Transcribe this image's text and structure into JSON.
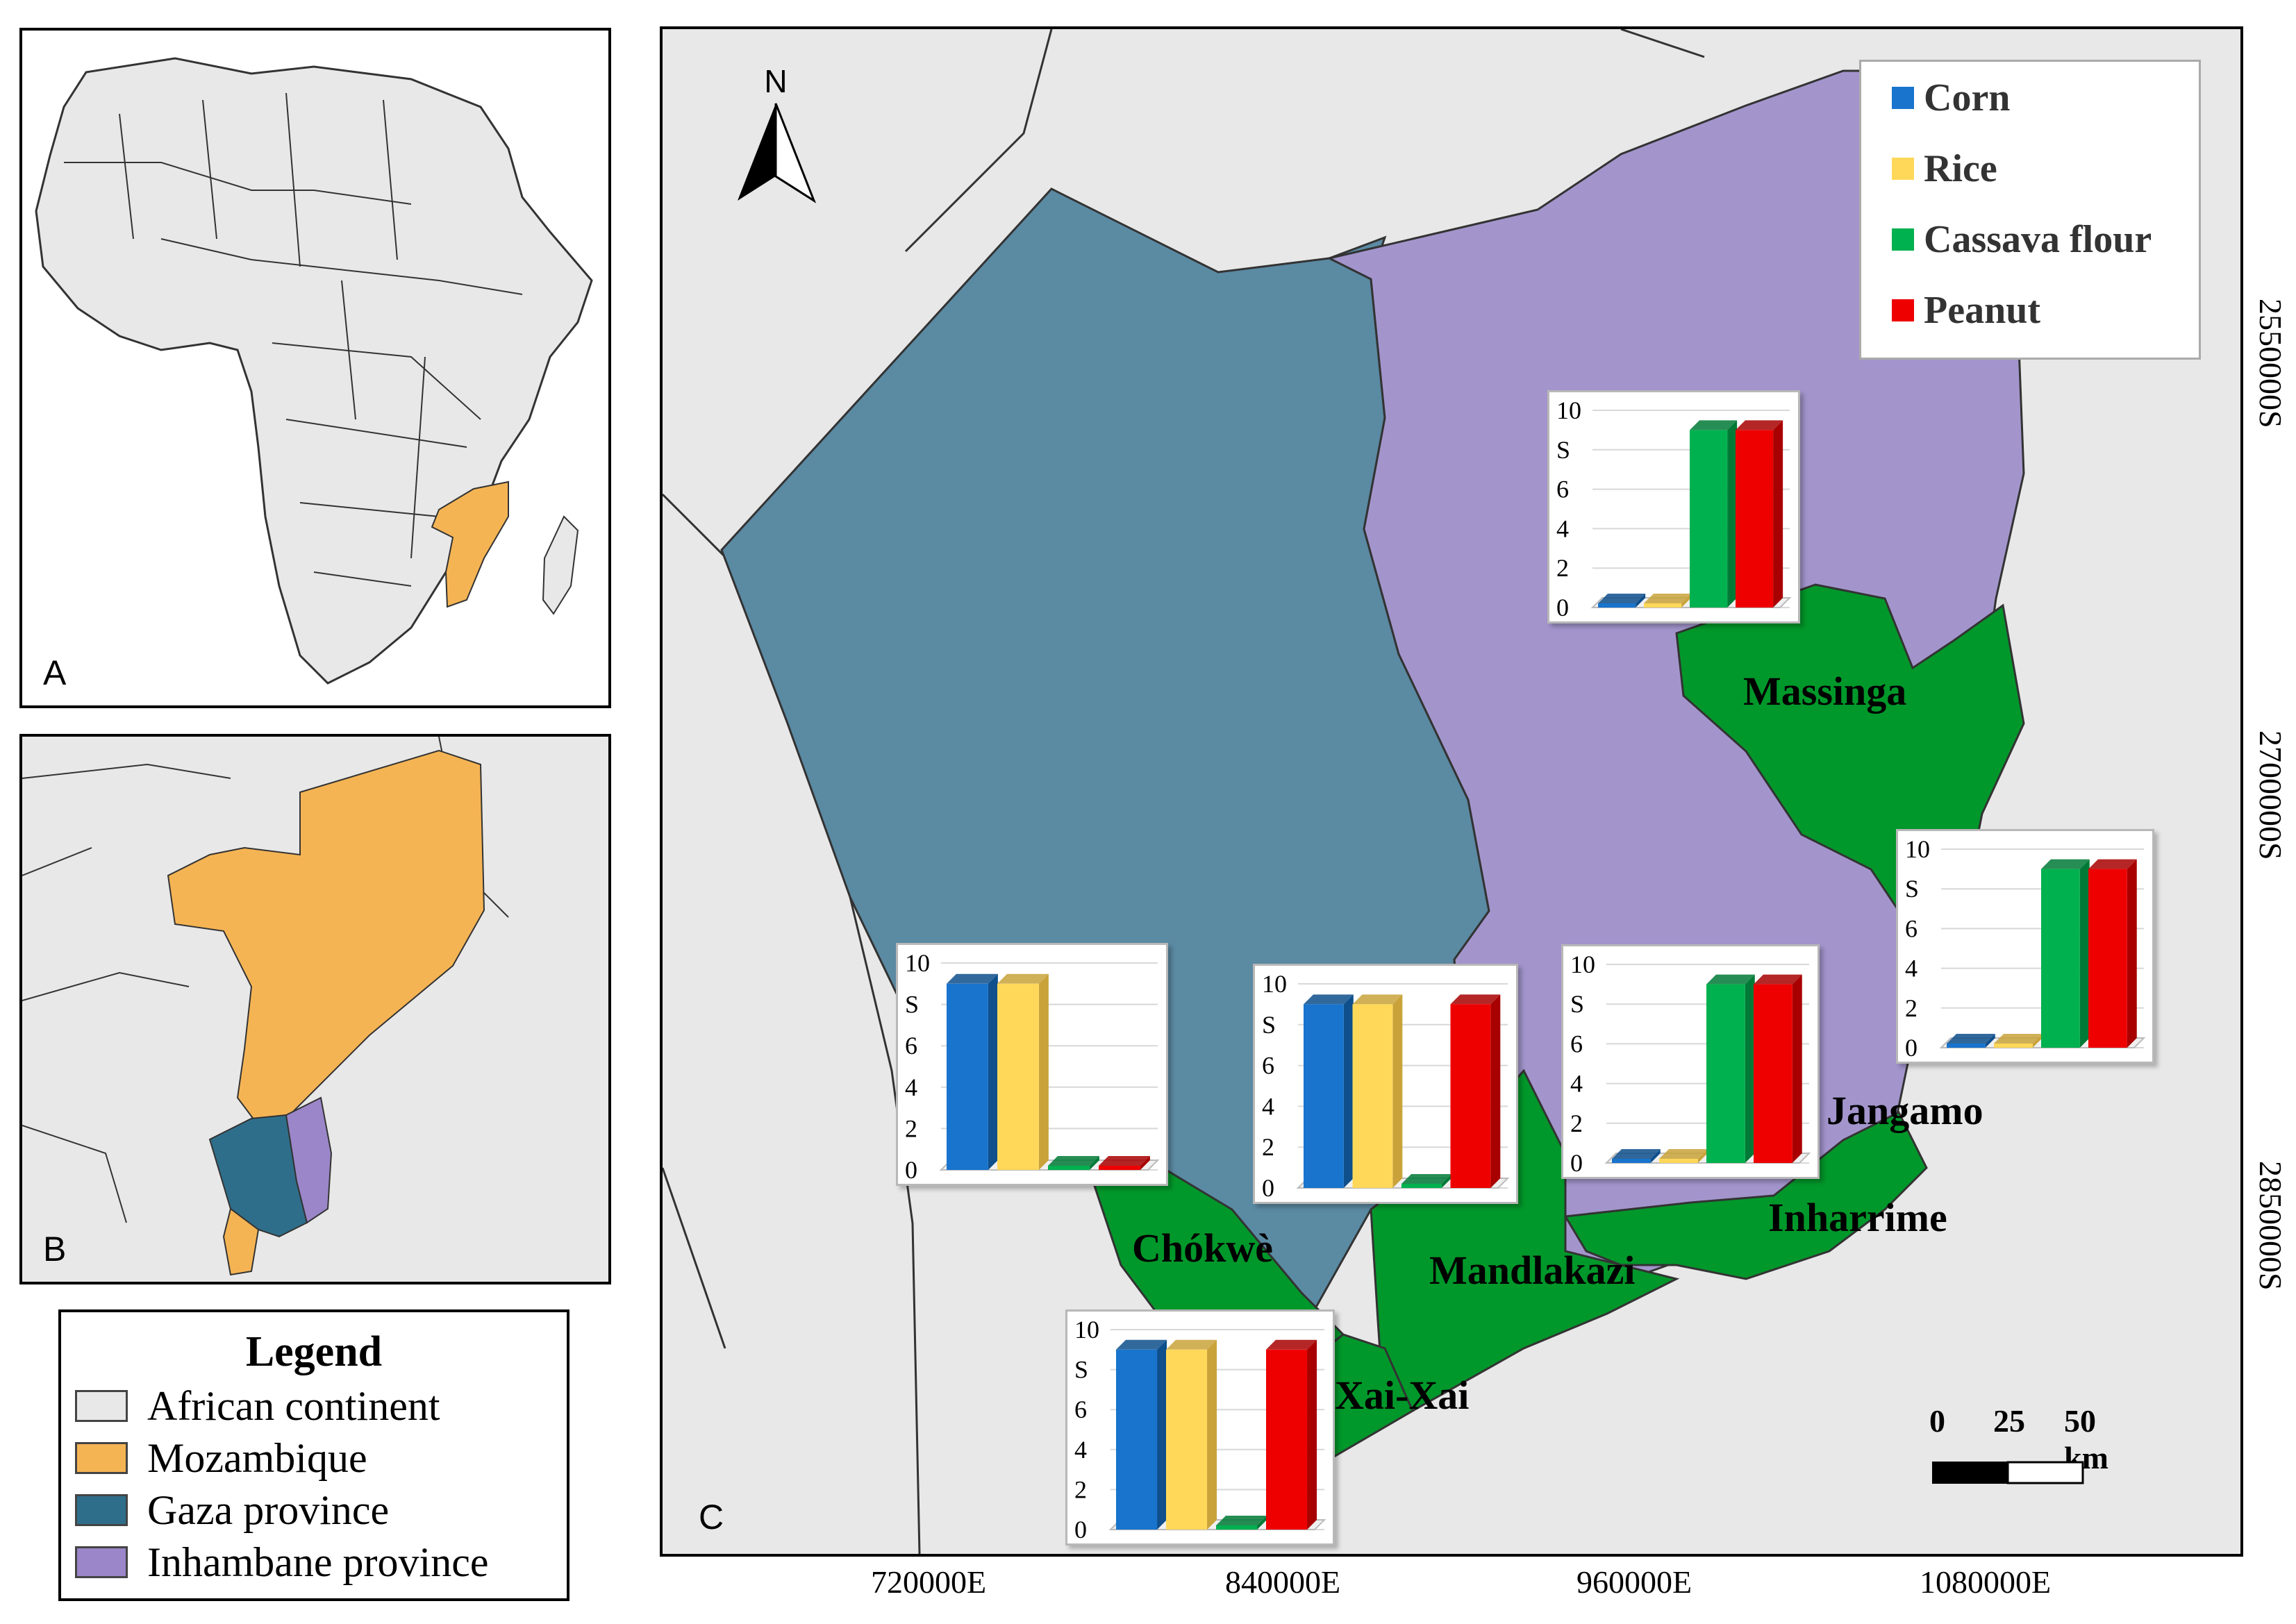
{
  "panels": {
    "a": "A",
    "b": "B",
    "c": "C"
  },
  "legend": {
    "title": "Legend",
    "items": [
      {
        "label": "African continent",
        "color": "#e8e8e8"
      },
      {
        "label": "Mozambique",
        "color": "#f5b454"
      },
      {
        "label": "Gaza province",
        "color": "#2e6e8a"
      },
      {
        "label": "Inhambane province",
        "color": "#9b86c9"
      }
    ]
  },
  "map_colors": {
    "land": "#e8e8e8",
    "gaza": "#5b8aa3",
    "inhambane": "#a395cc",
    "study_district": "#00982a"
  },
  "crop_legend": {
    "items": [
      {
        "label": "Corn",
        "color": "#1874cd"
      },
      {
        "label": "Rice",
        "color": "#ffd85a"
      },
      {
        "label": "Cassava flour",
        "color": "#00b14f"
      },
      {
        "label": "Peanut",
        "color": "#ee0000"
      }
    ]
  },
  "north_label": "N",
  "axes": {
    "x_ticks": [
      "720000E",
      "840000E",
      "960000E",
      "1080000E"
    ],
    "y_ticks": [
      "2550000S",
      "2700000S",
      "2850000S"
    ]
  },
  "scale_bar": {
    "labels": [
      "0",
      "25",
      "50 km"
    ]
  },
  "districts": [
    "Massinga",
    "Jangamo",
    "Inharrime",
    "Mandlakazi",
    "Chókwè",
    "Xai-Xai"
  ],
  "chart_data": [
    {
      "type": "bar",
      "district": "Massinga",
      "categories": [
        "Corn",
        "Rice",
        "Cassava flour",
        "Peanut"
      ],
      "values": [
        0,
        0,
        9,
        9
      ],
      "ylim": [
        0,
        10
      ],
      "y_ticks": [
        "0",
        "2",
        "4",
        "6",
        "S",
        "10"
      ]
    },
    {
      "type": "bar",
      "district": "Jangamo",
      "categories": [
        "Corn",
        "Rice",
        "Cassava flour",
        "Peanut"
      ],
      "values": [
        0,
        0,
        9,
        9
      ],
      "ylim": [
        0,
        10
      ],
      "y_ticks": [
        "0",
        "2",
        "4",
        "6",
        "S",
        "10"
      ]
    },
    {
      "type": "bar",
      "district": "Inharrime",
      "categories": [
        "Corn",
        "Rice",
        "Cassava flour",
        "Peanut"
      ],
      "values": [
        0,
        0,
        9,
        9
      ],
      "ylim": [
        0,
        10
      ],
      "y_ticks": [
        "0",
        "2",
        "4",
        "6",
        "S",
        "10"
      ]
    },
    {
      "type": "bar",
      "district": "Mandlakazi",
      "categories": [
        "Corn",
        "Rice",
        "Cassava flour",
        "Peanut"
      ],
      "values": [
        9,
        9,
        0,
        9
      ],
      "ylim": [
        0,
        10
      ],
      "y_ticks": [
        "0",
        "2",
        "4",
        "6",
        "S",
        "10"
      ]
    },
    {
      "type": "bar",
      "district": "Chókwè",
      "categories": [
        "Corn",
        "Rice",
        "Cassava flour",
        "Peanut"
      ],
      "values": [
        9,
        9,
        0,
        0
      ],
      "ylim": [
        0,
        10
      ],
      "y_ticks": [
        "0",
        "2",
        "4",
        "6",
        "S",
        "10"
      ]
    },
    {
      "type": "bar",
      "district": "Xai-Xai",
      "categories": [
        "Corn",
        "Rice",
        "Cassava flour",
        "Peanut"
      ],
      "values": [
        9,
        9,
        0,
        9
      ],
      "ylim": [
        0,
        10
      ],
      "y_ticks": [
        "0",
        "2",
        "4",
        "6",
        "S",
        "10"
      ]
    }
  ]
}
